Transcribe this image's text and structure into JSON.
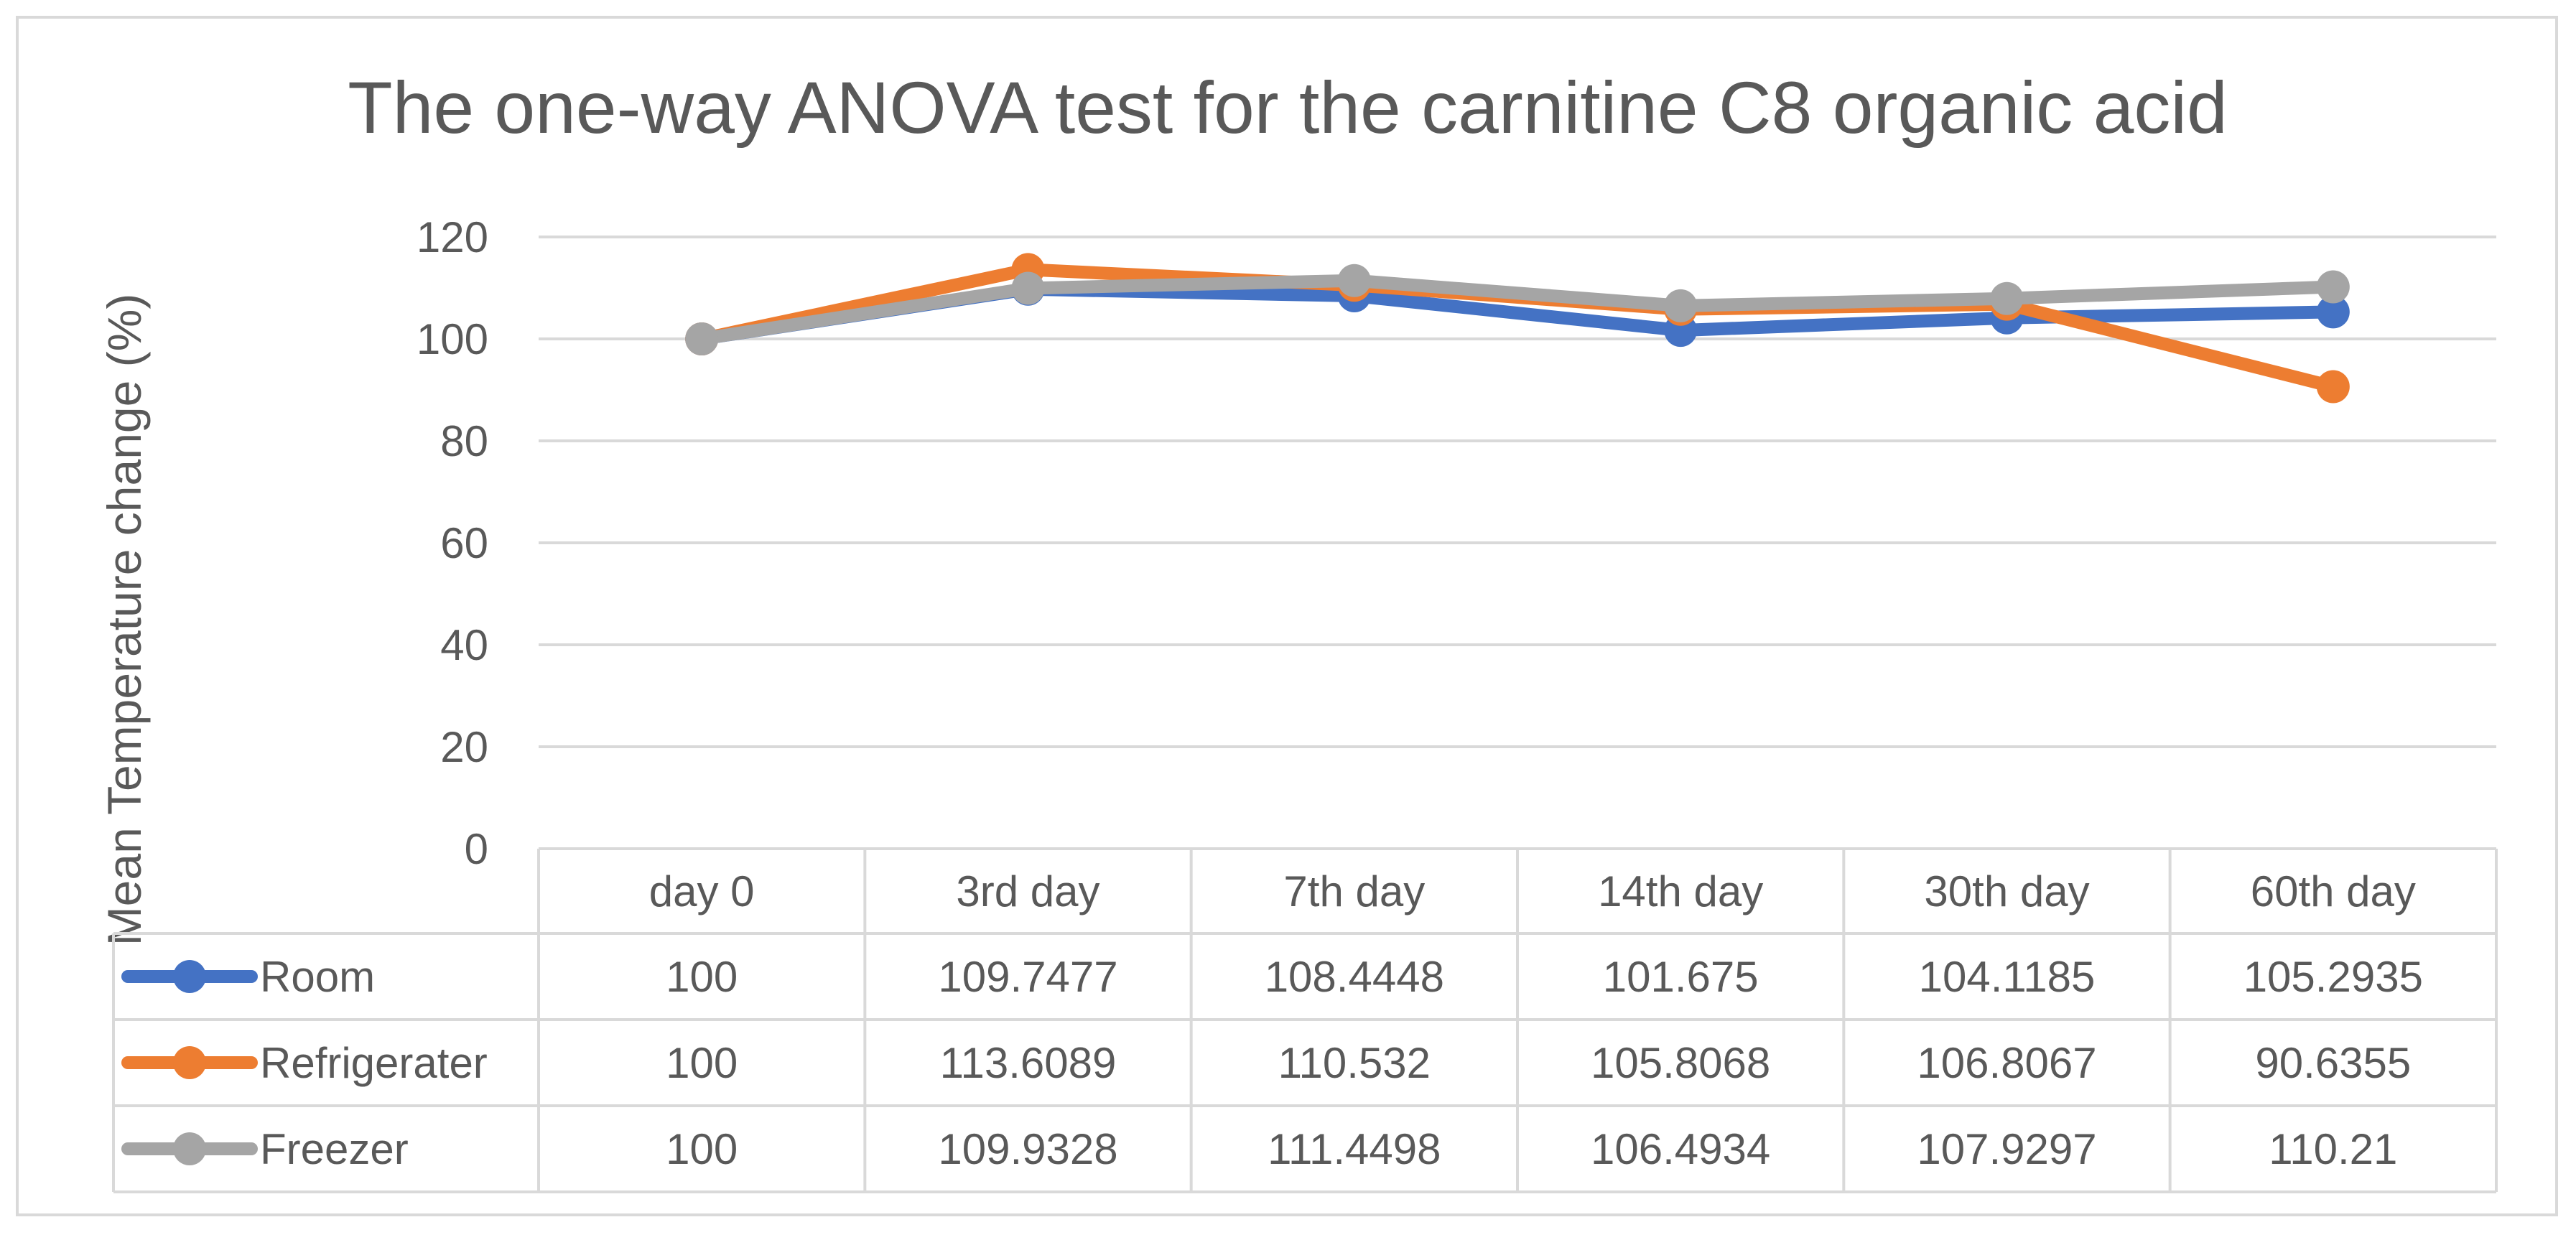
{
  "chart_data": {
    "type": "line",
    "title": "The one-way ANOVA test for the carnitine C8 organic acid",
    "xlabel": "",
    "ylabel": "Mean Temperature change (%)",
    "ylim": [
      0,
      120
    ],
    "yticks": [
      0,
      20,
      40,
      60,
      80,
      100,
      120
    ],
    "grid": true,
    "legend_position": "data-table",
    "categories": [
      "day 0",
      "3rd day",
      "7th day",
      "14th day",
      "30th day",
      "60th day"
    ],
    "series": [
      {
        "name": "Room",
        "color": "#4472C4",
        "values": [
          100,
          109.7477,
          108.4448,
          101.675,
          104.1185,
          105.2935
        ],
        "labels": [
          "100",
          "109.7477",
          "108.4448",
          "101.675",
          "104.1185",
          "105.2935"
        ]
      },
      {
        "name": "Refrigerater",
        "color": "#ED7D31",
        "values": [
          100,
          113.6089,
          110.532,
          105.8068,
          106.8067,
          90.6355
        ],
        "labels": [
          "100",
          "113.6089",
          "110.532",
          "105.8068",
          "106.8067",
          "90.6355"
        ]
      },
      {
        "name": "Freezer",
        "color": "#A5A5A5",
        "values": [
          100,
          109.9328,
          111.4498,
          106.4934,
          107.9297,
          110.21
        ],
        "labels": [
          "100",
          "109.9328",
          "111.4498",
          "106.4934",
          "107.9297",
          "110.21"
        ]
      }
    ]
  }
}
